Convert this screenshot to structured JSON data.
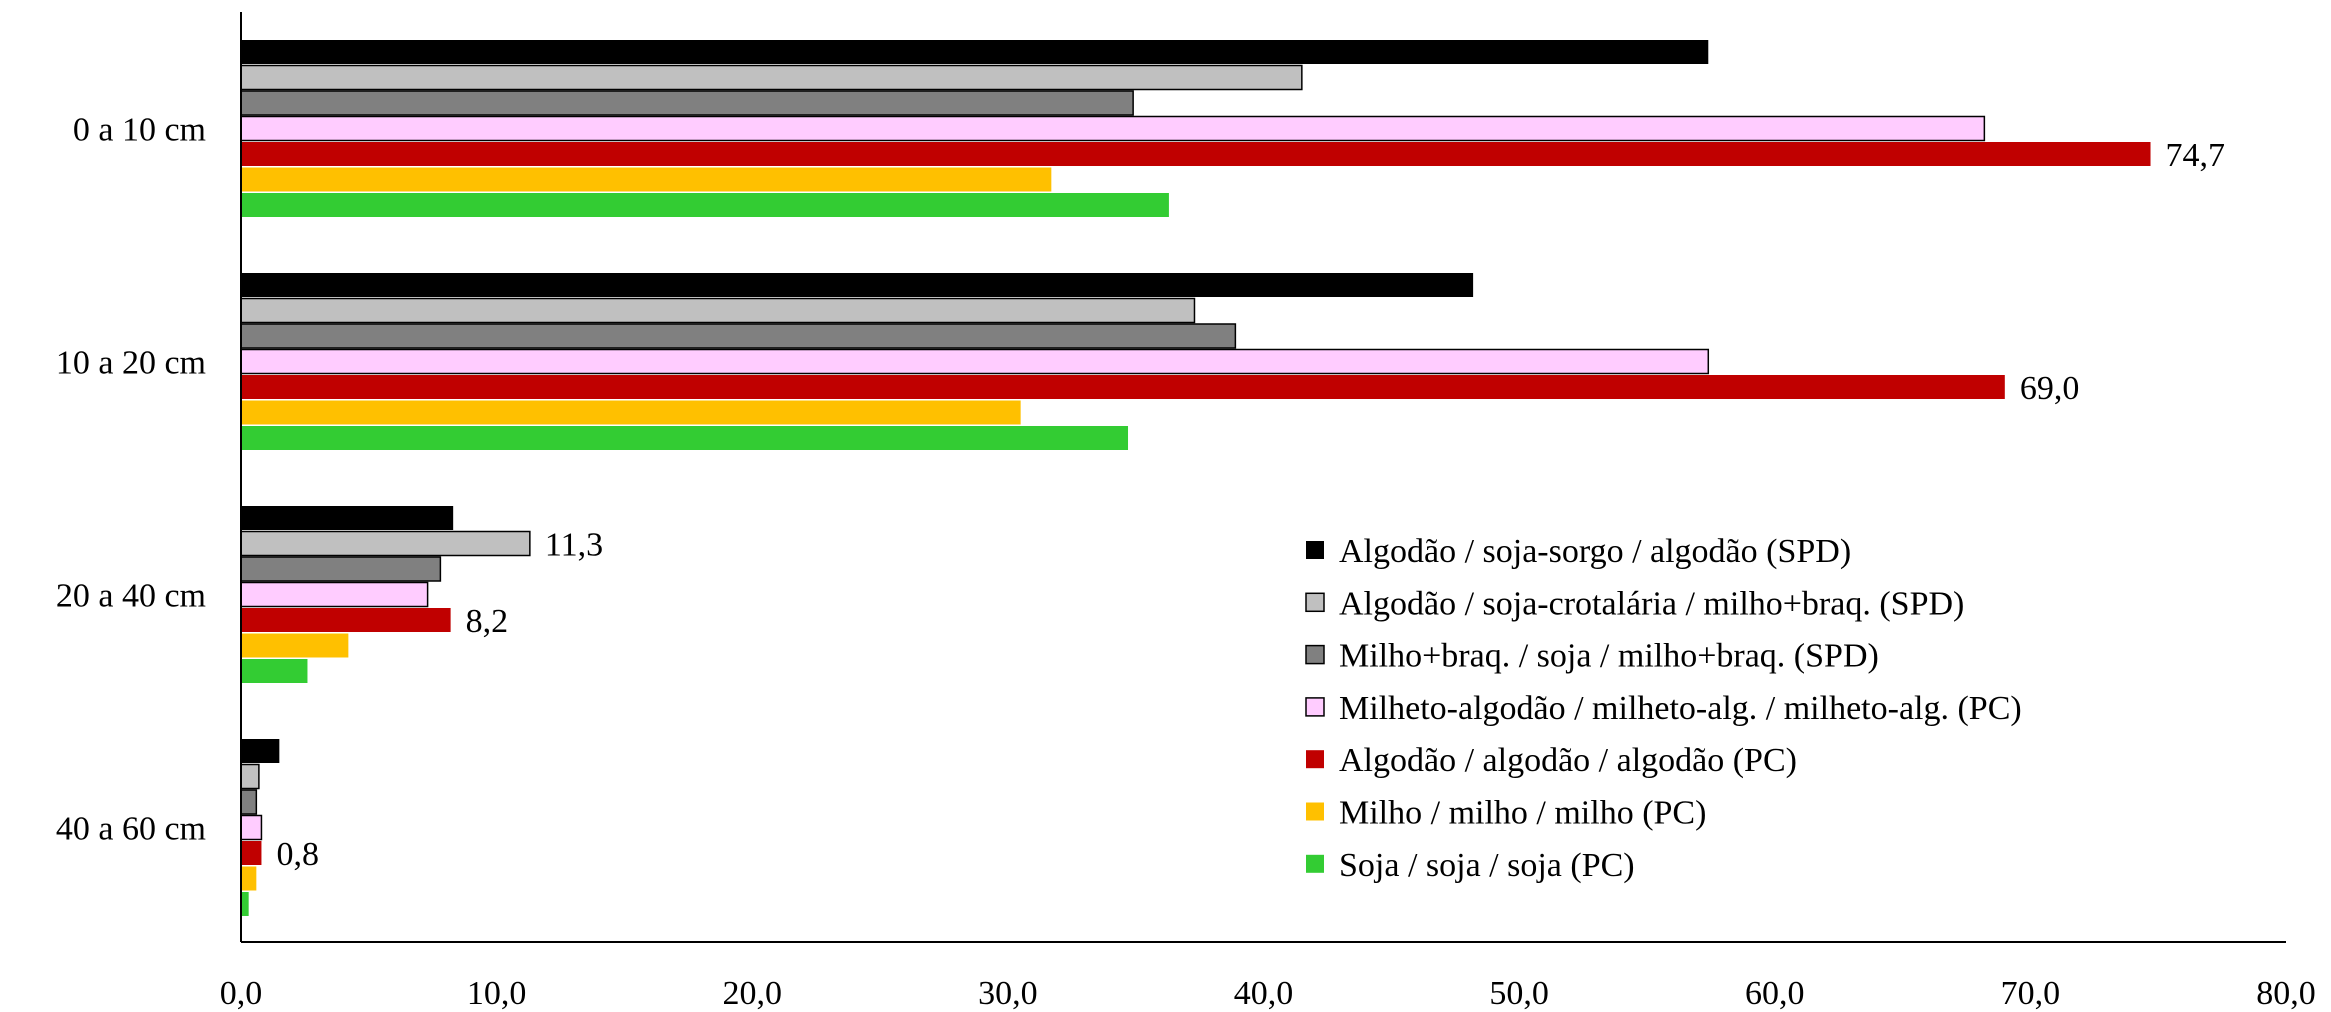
{
  "chart_data": {
    "type": "bar",
    "orientation": "horizontal",
    "title": "",
    "xlabel": "",
    "ylabel": "",
    "xlim": [
      0,
      80
    ],
    "x_ticks": [
      "0,0",
      "10,0",
      "20,0",
      "30,0",
      "40,0",
      "50,0",
      "60,0",
      "70,0",
      "80,0"
    ],
    "grid": false,
    "legend_position": "bottom-right (inside plot)",
    "categories": [
      "0 a 10 cm",
      "10 a 20 cm",
      "20 a 40 cm",
      "40 a 60 cm"
    ],
    "series": [
      {
        "name": "Algodão / soja-sorgo / algodão (SPD)",
        "color": "#000000",
        "outline": false,
        "values": [
          57.4,
          48.2,
          8.3,
          1.5
        ]
      },
      {
        "name": "Algodão / soja-crotalária / milho+braq. (SPD)",
        "color": "#c0c0c0",
        "outline": true,
        "values": [
          41.5,
          37.3,
          11.3,
          0.7
        ]
      },
      {
        "name": "Milho+braq. / soja / milho+braq. (SPD)",
        "color": "#808080",
        "outline": true,
        "values": [
          34.9,
          38.9,
          7.8,
          0.6
        ]
      },
      {
        "name": "Milheto-algodão / milheto-alg. / milheto-alg. (PC)",
        "color": "#ffccff",
        "outline": true,
        "values": [
          68.2,
          57.4,
          7.3,
          0.8
        ]
      },
      {
        "name": "Algodão / algodão / algodão (PC)",
        "color": "#c00000",
        "outline": false,
        "values": [
          74.7,
          69.0,
          8.2,
          0.8
        ]
      },
      {
        "name": "Milho / milho / milho (PC)",
        "color": "#ffc000",
        "outline": false,
        "values": [
          31.7,
          30.5,
          4.2,
          0.6
        ]
      },
      {
        "name": "Soja / soja / soja (PC)",
        "color": "#33cc33",
        "outline": false,
        "values": [
          36.3,
          34.7,
          2.6,
          0.3
        ]
      }
    ],
    "data_labels": [
      {
        "category": 0,
        "series": 4,
        "text": "74,7"
      },
      {
        "category": 1,
        "series": 4,
        "text": "69,0"
      },
      {
        "category": 2,
        "series": 1,
        "text": "11,3"
      },
      {
        "category": 2,
        "series": 4,
        "text": "8,2"
      },
      {
        "category": 3,
        "series": 4,
        "text": "0,8"
      }
    ]
  }
}
